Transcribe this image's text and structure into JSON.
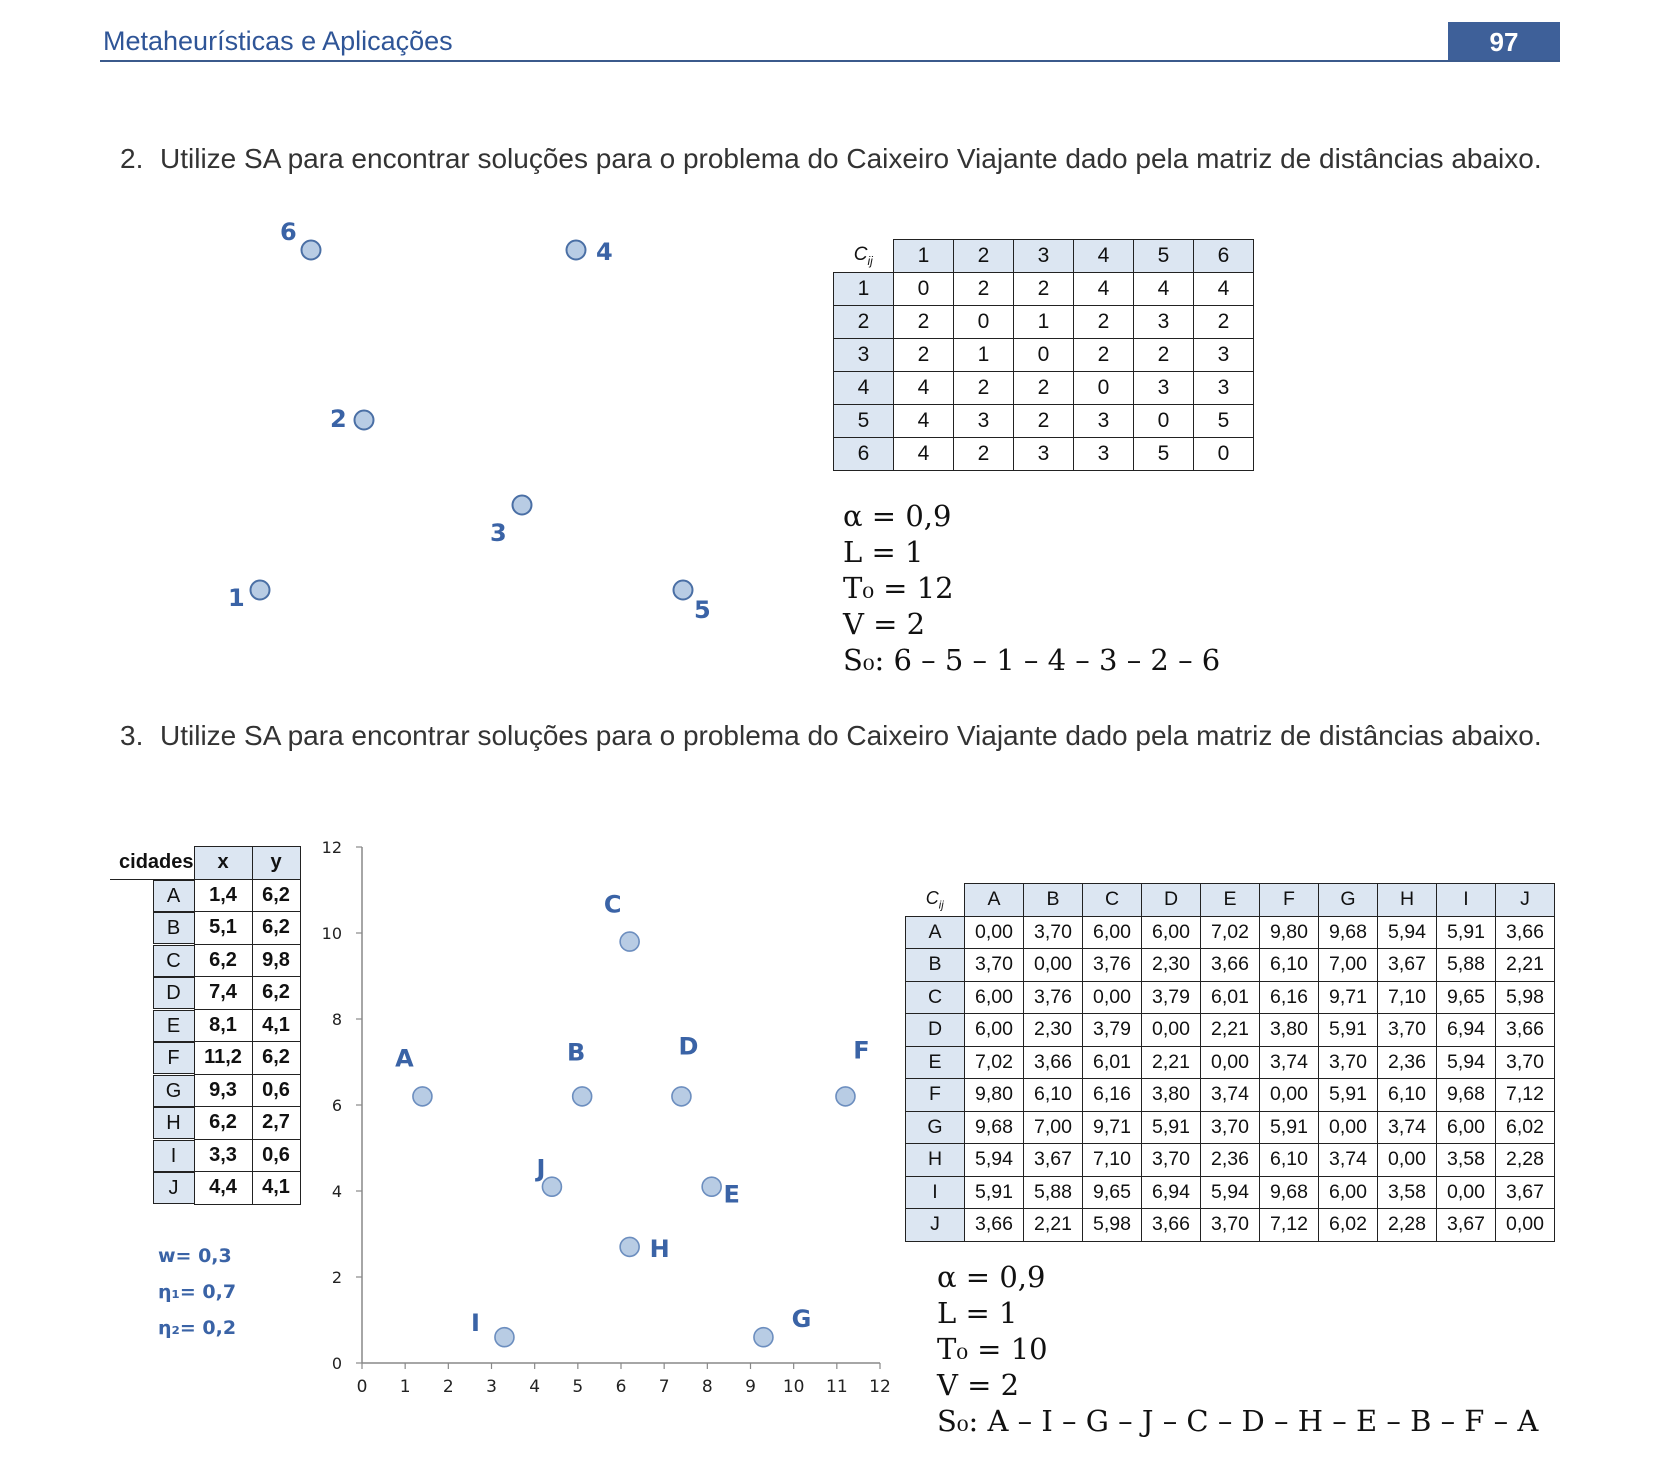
{
  "header": {
    "title": "Metaheurísticas e Aplicações",
    "page_number": "97"
  },
  "problem2": {
    "number": "2.",
    "text": "Utilize SA para encontrar soluções para o problema do Caixeiro Viajante dado pela matriz de distâncias abaixo.",
    "nodes": [
      {
        "label": "1"
      },
      {
        "label": "2"
      },
      {
        "label": "3"
      },
      {
        "label": "4"
      },
      {
        "label": "5"
      },
      {
        "label": "6"
      }
    ],
    "matrix": {
      "corner": "C",
      "corner_sub": "ij",
      "headers": [
        "1",
        "2",
        "3",
        "4",
        "5",
        "6"
      ],
      "rows": [
        {
          "label": "1",
          "values": [
            "0",
            "2",
            "2",
            "4",
            "4",
            "4"
          ]
        },
        {
          "label": "2",
          "values": [
            "2",
            "0",
            "1",
            "2",
            "3",
            "2"
          ]
        },
        {
          "label": "3",
          "values": [
            "2",
            "1",
            "0",
            "2",
            "2",
            "3"
          ]
        },
        {
          "label": "4",
          "values": [
            "4",
            "2",
            "2",
            "0",
            "3",
            "3"
          ]
        },
        {
          "label": "5",
          "values": [
            "4",
            "3",
            "2",
            "3",
            "0",
            "5"
          ]
        },
        {
          "label": "6",
          "values": [
            "4",
            "2",
            "3",
            "3",
            "5",
            "0"
          ]
        }
      ]
    },
    "params": [
      "α = 0,9",
      "L = 1",
      "T₀ = 12",
      "V = 2",
      "S₀: 6 – 5 – 1 – 4 – 3 – 2 – 6"
    ]
  },
  "problem3": {
    "number": "3.",
    "text": "Utilize SA para encontrar soluções para o problema do Caixeiro Viajante dado pela matriz de distâncias abaixo.",
    "cities_table": {
      "headers": [
        "cidades",
        "x",
        "y"
      ],
      "rows": [
        {
          "city": "A",
          "x": "1,4",
          "y": "6,2"
        },
        {
          "city": "B",
          "x": "5,1",
          "y": "6,2"
        },
        {
          "city": "C",
          "x": "6,2",
          "y": "9,8"
        },
        {
          "city": "D",
          "x": "7,4",
          "y": "6,2"
        },
        {
          "city": "E",
          "x": "8,1",
          "y": "4,1"
        },
        {
          "city": "F",
          "x": "11,2",
          "y": "6,2"
        },
        {
          "city": "G",
          "x": "9,3",
          "y": "0,6"
        },
        {
          "city": "H",
          "x": "6,2",
          "y": "2,7"
        },
        {
          "city": "I",
          "x": "3,3",
          "y": "0,6"
        },
        {
          "city": "J",
          "x": "4,4",
          "y": "4,1"
        }
      ]
    },
    "weights": [
      "w= 0,3",
      "η₁= 0,7",
      "η₂= 0,2"
    ],
    "chart_data": {
      "type": "scatter",
      "title": "",
      "xlabel": "",
      "ylabel": "",
      "xlim": [
        0,
        12
      ],
      "ylim": [
        0,
        12
      ],
      "x_ticks": [
        "0",
        "1",
        "2",
        "3",
        "4",
        "5",
        "6",
        "7",
        "8",
        "9",
        "10",
        "11",
        "12"
      ],
      "y_ticks": [
        "0",
        "2",
        "4",
        "6",
        "8",
        "10",
        "12"
      ],
      "grid": false,
      "points": [
        {
          "label": "A",
          "x": 1.4,
          "y": 6.2
        },
        {
          "label": "B",
          "x": 5.1,
          "y": 6.2
        },
        {
          "label": "C",
          "x": 6.2,
          "y": 9.8
        },
        {
          "label": "D",
          "x": 7.4,
          "y": 6.2
        },
        {
          "label": "E",
          "x": 8.1,
          "y": 4.1
        },
        {
          "label": "F",
          "x": 11.2,
          "y": 6.2
        },
        {
          "label": "G",
          "x": 9.3,
          "y": 0.6
        },
        {
          "label": "H",
          "x": 6.2,
          "y": 2.7
        },
        {
          "label": "I",
          "x": 3.3,
          "y": 0.6
        },
        {
          "label": "J",
          "x": 4.4,
          "y": 4.1
        }
      ]
    },
    "matrix": {
      "corner": "C",
      "corner_sub": "ij",
      "headers": [
        "A",
        "B",
        "C",
        "D",
        "E",
        "F",
        "G",
        "H",
        "I",
        "J"
      ],
      "rows": [
        {
          "label": "A",
          "values": [
            "0,00",
            "3,70",
            "6,00",
            "6,00",
            "7,02",
            "9,80",
            "9,68",
            "5,94",
            "5,91",
            "3,66"
          ]
        },
        {
          "label": "B",
          "values": [
            "3,70",
            "0,00",
            "3,76",
            "2,30",
            "3,66",
            "6,10",
            "7,00",
            "3,67",
            "5,88",
            "2,21"
          ]
        },
        {
          "label": "C",
          "values": [
            "6,00",
            "3,76",
            "0,00",
            "3,79",
            "6,01",
            "6,16",
            "9,71",
            "7,10",
            "9,65",
            "5,98"
          ]
        },
        {
          "label": "D",
          "values": [
            "6,00",
            "2,30",
            "3,79",
            "0,00",
            "2,21",
            "3,80",
            "5,91",
            "3,70",
            "6,94",
            "3,66"
          ]
        },
        {
          "label": "E",
          "values": [
            "7,02",
            "3,66",
            "6,01",
            "2,21",
            "0,00",
            "3,74",
            "3,70",
            "2,36",
            "5,94",
            "3,70"
          ]
        },
        {
          "label": "F",
          "values": [
            "9,80",
            "6,10",
            "6,16",
            "3,80",
            "3,74",
            "0,00",
            "5,91",
            "6,10",
            "9,68",
            "7,12"
          ]
        },
        {
          "label": "G",
          "values": [
            "9,68",
            "7,00",
            "9,71",
            "5,91",
            "3,70",
            "5,91",
            "0,00",
            "3,74",
            "6,00",
            "6,02"
          ]
        },
        {
          "label": "H",
          "values": [
            "5,94",
            "3,67",
            "7,10",
            "3,70",
            "2,36",
            "6,10",
            "3,74",
            "0,00",
            "3,58",
            "2,28"
          ]
        },
        {
          "label": "I",
          "values": [
            "5,91",
            "5,88",
            "9,65",
            "6,94",
            "5,94",
            "9,68",
            "6,00",
            "3,58",
            "0,00",
            "3,67"
          ]
        },
        {
          "label": "J",
          "values": [
            "3,66",
            "2,21",
            "5,98",
            "3,66",
            "3,70",
            "7,12",
            "6,02",
            "2,28",
            "3,67",
            "0,00"
          ]
        }
      ]
    },
    "params": [
      "α = 0,9",
      "L = 1",
      "T₀ = 10",
      "V = 2",
      "S₀: A – I – G – J – C – D – H – E – B – F – A"
    ]
  },
  "colors": {
    "accent": "#3e6099",
    "node_fill": "#b8cce4",
    "node_stroke": "#4a6fa5",
    "label": "#3a63a6",
    "table_header": "#dce6f2"
  }
}
